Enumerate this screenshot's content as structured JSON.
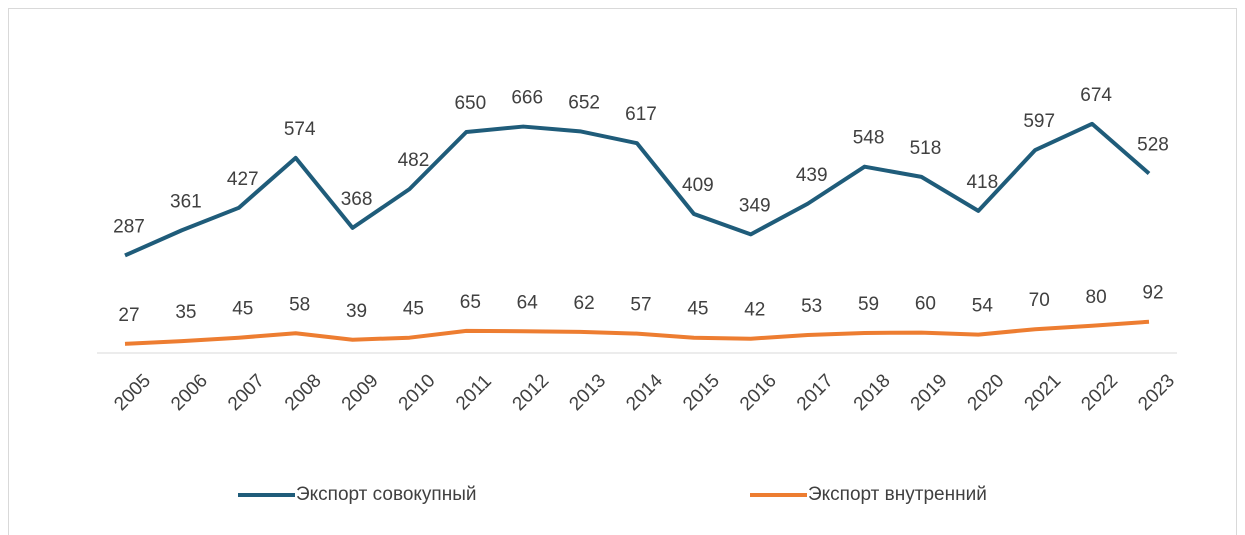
{
  "chart_data": {
    "type": "line",
    "categories": [
      "2005",
      "2006",
      "2007",
      "2008",
      "2009",
      "2010",
      "2011",
      "2012",
      "2013",
      "2014",
      "2015",
      "2016",
      "2017",
      "2018",
      "2019",
      "2020",
      "2021",
      "2022",
      "2023"
    ],
    "series": [
      {
        "name": "Экспорт совокупный",
        "color": "#1f5c7a",
        "values": [
          287,
          361,
          427,
          574,
          368,
          482,
          650,
          666,
          652,
          617,
          409,
          349,
          439,
          548,
          518,
          418,
          597,
          674,
          528
        ]
      },
      {
        "name": "Экспорт внутренний",
        "color": "#ed7d31",
        "values": [
          27,
          35,
          45,
          58,
          39,
          45,
          65,
          64,
          62,
          57,
          45,
          42,
          53,
          59,
          60,
          54,
          70,
          80,
          92
        ]
      }
    ],
    "ylim": [
      0,
      800
    ],
    "legend": "bottom"
  }
}
